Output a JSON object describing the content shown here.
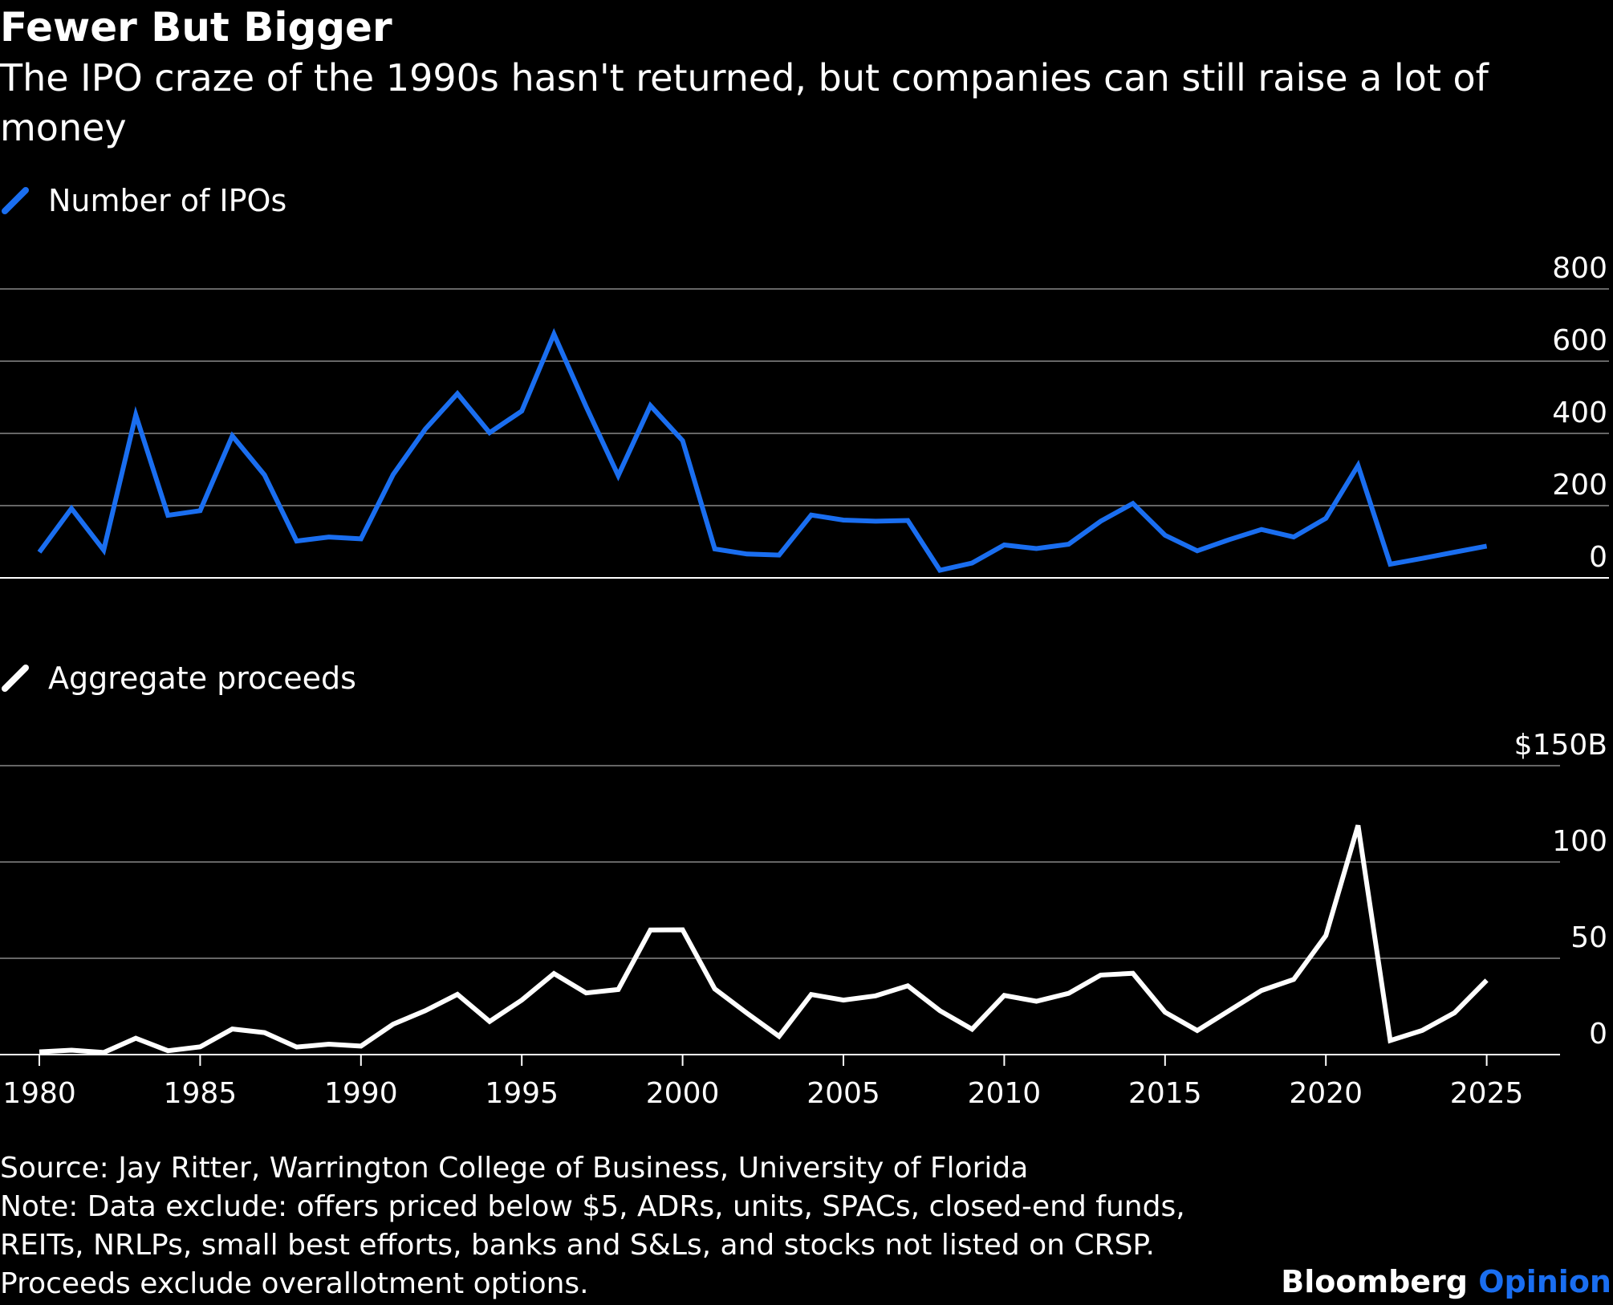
{
  "header": {
    "title": "Fewer But Bigger",
    "subtitle": "The IPO craze of the 1990s hasn't returned, but companies can still raise a lot of money"
  },
  "legends": {
    "top": "Number of IPOs",
    "bottom": "Aggregate proceeds"
  },
  "colors": {
    "background": "#000000",
    "ipo_line": "#1a6ef0",
    "proceeds_line": "#ffffff",
    "grid": "#666666"
  },
  "chart_data": [
    {
      "type": "line",
      "name": "Number of IPOs",
      "x": [
        1980,
        1981,
        1982,
        1983,
        1984,
        1985,
        1986,
        1987,
        1988,
        1989,
        1990,
        1991,
        1992,
        1993,
        1994,
        1995,
        1996,
        1997,
        1998,
        1999,
        2000,
        2001,
        2002,
        2003,
        2004,
        2005,
        2006,
        2007,
        2008,
        2009,
        2010,
        2011,
        2012,
        2013,
        2014,
        2015,
        2016,
        2017,
        2018,
        2019,
        2020,
        2021,
        2022,
        2023,
        2024,
        2025
      ],
      "values": [
        71,
        192,
        77,
        451,
        173,
        186,
        393,
        285,
        102,
        113,
        108,
        286,
        412,
        510,
        402,
        462,
        675,
        474,
        283,
        477,
        380,
        80,
        66,
        63,
        174,
        160,
        157,
        159,
        21,
        41,
        91,
        81,
        93,
        157,
        206,
        118,
        75,
        106,
        134,
        113,
        165,
        311,
        38,
        54,
        71,
        88
      ],
      "yticks": [
        0,
        200,
        400,
        600,
        800
      ],
      "ytick_labels": [
        "0",
        "200",
        "400",
        "600",
        "800"
      ],
      "ylim": [
        0,
        800
      ],
      "grid": true,
      "color": "#1a6ef0"
    },
    {
      "type": "line",
      "name": "Aggregate proceeds",
      "x": [
        1980,
        1981,
        1982,
        1983,
        1984,
        1985,
        1986,
        1987,
        1988,
        1989,
        1990,
        1991,
        1992,
        1993,
        1994,
        1995,
        1996,
        1997,
        1998,
        1999,
        2000,
        2001,
        2002,
        2003,
        2004,
        2005,
        2006,
        2007,
        2008,
        2009,
        2010,
        2011,
        2012,
        2013,
        2014,
        2015,
        2016,
        2017,
        2018,
        2019,
        2020,
        2021,
        2022,
        2023,
        2024,
        2025
      ],
      "values": [
        1.4,
        2.3,
        1.1,
        8.5,
        2.0,
        4.0,
        13.3,
        11.4,
        3.9,
        5.4,
        4.4,
        15.8,
        22.8,
        31.3,
        17.2,
        28.3,
        42.1,
        32.0,
        33.8,
        64.7,
        64.8,
        34.1,
        21.5,
        9.5,
        31.2,
        28.3,
        30.5,
        35.7,
        22.8,
        13.2,
        30.7,
        27.7,
        31.8,
        41.3,
        42.2,
        22.0,
        12.5,
        22.9,
        33.3,
        39.0,
        61.8,
        119.0,
        7.3,
        12.6,
        21.7,
        38.6
      ],
      "yticks": [
        0,
        50,
        100,
        150
      ],
      "ytick_labels": [
        "0",
        "50",
        "100",
        "$150B"
      ],
      "ylim": [
        0,
        150
      ],
      "grid": true,
      "color": "#ffffff"
    }
  ],
  "x_axis": {
    "ticks": [
      1980,
      1985,
      1990,
      1995,
      2000,
      2005,
      2010,
      2015,
      2020,
      2025
    ],
    "tick_labels": [
      "1980",
      "1985",
      "1990",
      "1995",
      "2000",
      "2005",
      "2010",
      "2015",
      "2020",
      "2025"
    ]
  },
  "footer": {
    "source": "Source: Jay Ritter, Warrington College of Business, University of Florida",
    "note_line1": "Note: Data exclude: offers priced below $5, ADRs, units, SPACs, closed-end funds,",
    "note_line2": "REITs, NRLPs, small best efforts, banks and S&Ls, and stocks not listed on CRSP.",
    "note_line3": "Proceeds exclude overallotment options."
  },
  "brand": {
    "name": "Bloomberg",
    "product": "Opinion"
  }
}
